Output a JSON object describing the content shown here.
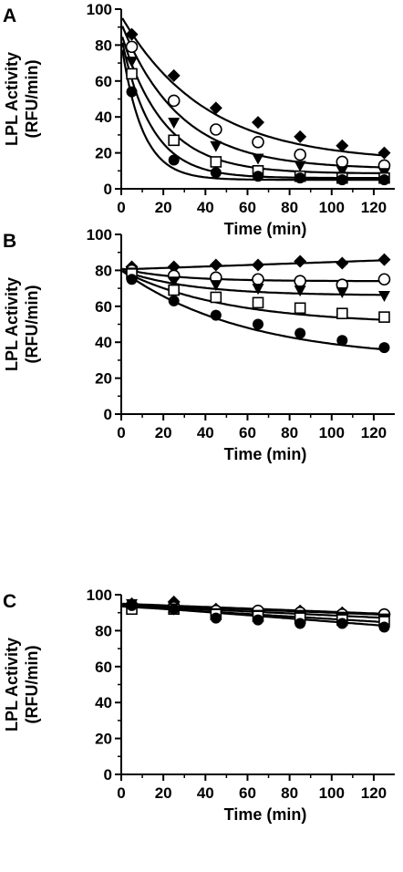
{
  "figure": {
    "colors": {
      "ink": "#000000",
      "background": "#ffffff",
      "open_fill": "#ffffff"
    }
  },
  "chart_data": [
    {
      "type": "scatter",
      "panel": "A",
      "xlabel": "Time (min)",
      "ylabel": "LPL Activity (RFU/min)",
      "ylabel_lines": [
        "LPL Activity",
        "(RFU/min)"
      ],
      "xlim": [
        0,
        130
      ],
      "ylim": [
        0,
        100
      ],
      "x_ticks": [
        0,
        20,
        40,
        60,
        80,
        100,
        120
      ],
      "y_ticks": [
        0,
        20,
        40,
        60,
        80,
        100
      ],
      "grid": false,
      "legend": "none",
      "fit_curves": true,
      "x": [
        5,
        25,
        45,
        65,
        85,
        105,
        125
      ],
      "series": [
        {
          "marker": "diamond-filled",
          "values": [
            86,
            63,
            45,
            37,
            29,
            24,
            20
          ],
          "fit": {
            "plateau": 15,
            "span": 81,
            "k": 0.025
          }
        },
        {
          "marker": "circle-open",
          "values": [
            79,
            49,
            33,
            26,
            19,
            15,
            13
          ],
          "fit": {
            "plateau": 11,
            "span": 81,
            "k": 0.036
          }
        },
        {
          "marker": "triangle-down-filled",
          "values": [
            71,
            37,
            24,
            17,
            13,
            10,
            9
          ],
          "fit": {
            "plateau": 8.5,
            "span": 78,
            "k": 0.05
          }
        },
        {
          "marker": "square-open",
          "values": [
            64,
            27,
            15,
            10,
            7,
            6,
            6
          ],
          "fit": {
            "plateau": 6,
            "span": 78,
            "k": 0.07
          }
        },
        {
          "marker": "circle-filled",
          "values": [
            54,
            16,
            9,
            7,
            6,
            5,
            5
          ],
          "fit": {
            "plateau": 5,
            "span": 76,
            "k": 0.1
          }
        }
      ]
    },
    {
      "type": "scatter",
      "panel": "B",
      "xlabel": "Time (min)",
      "ylabel": "LPL Activity (RFU/min)",
      "ylabel_lines": [
        "LPL Activity",
        "(RFU/min)"
      ],
      "xlim": [
        0,
        130
      ],
      "ylim": [
        0,
        100
      ],
      "x_ticks": [
        0,
        20,
        40,
        60,
        80,
        100,
        120
      ],
      "y_ticks": [
        0,
        20,
        40,
        60,
        80,
        100
      ],
      "grid": false,
      "legend": "none",
      "fit_curves": true,
      "x": [
        5,
        25,
        45,
        65,
        85,
        105,
        125
      ],
      "series": [
        {
          "marker": "diamond-filled",
          "values": [
            82,
            82,
            83,
            83,
            85,
            84,
            86
          ],
          "fit": {
            "line": [
              80.5,
              0.041
            ]
          }
        },
        {
          "marker": "circle-open",
          "values": [
            80,
            77,
            76,
            75,
            74,
            72,
            75
          ],
          "fit": {
            "plateau": 74,
            "span": 7,
            "k": 0.04
          }
        },
        {
          "marker": "triangle-down-filled",
          "values": [
            79,
            74,
            72,
            70,
            69,
            68,
            66
          ],
          "fit": {
            "plateau": 66,
            "span": 14,
            "k": 0.03
          }
        },
        {
          "marker": "square-open",
          "values": [
            78,
            69,
            65,
            62,
            59,
            56,
            54
          ],
          "fit": {
            "plateau": 50,
            "span": 30,
            "k": 0.02
          }
        },
        {
          "marker": "circle-filled",
          "values": [
            75,
            63,
            55,
            50,
            45,
            41,
            37
          ],
          "fit": {
            "plateau": 30,
            "span": 50,
            "k": 0.017
          }
        }
      ]
    },
    {
      "type": "scatter",
      "panel": "C",
      "xlabel": "Time (min)",
      "ylabel": "LPL Activity (RFU/min)",
      "ylabel_lines": [
        "LPL Activity",
        "(RFU/min)"
      ],
      "xlim": [
        0,
        130
      ],
      "ylim": [
        0,
        100
      ],
      "x_ticks": [
        0,
        20,
        40,
        60,
        80,
        100,
        120
      ],
      "y_ticks": [
        0,
        20,
        40,
        60,
        80,
        100
      ],
      "grid": false,
      "legend": "none",
      "fit_curves": true,
      "x": [
        5,
        25,
        45,
        65,
        85,
        105,
        125
      ],
      "series": [
        {
          "marker": "diamond-filled",
          "values": [
            95,
            96,
            92,
            91,
            91,
            90,
            89
          ],
          "fit": {
            "line": [
              95,
              -0.045
            ]
          }
        },
        {
          "marker": "circle-open",
          "values": [
            94,
            93,
            91,
            91,
            90,
            89,
            89
          ],
          "fit": {
            "line": [
              94.5,
              -0.045
            ]
          }
        },
        {
          "marker": "triangle-down-filled",
          "values": [
            95,
            92,
            90,
            89,
            89,
            88,
            87
          ],
          "fit": {
            "line": [
              94,
              -0.055
            ]
          }
        },
        {
          "marker": "square-open",
          "values": [
            92,
            92,
            89,
            88,
            87,
            86,
            85
          ],
          "fit": {
            "line": [
              93.5,
              -0.07
            ]
          }
        },
        {
          "marker": "circle-filled",
          "values": [
            94,
            92,
            87,
            86,
            84,
            84,
            82
          ],
          "fit": {
            "line": [
              94,
              -0.09
            ]
          }
        }
      ]
    }
  ]
}
